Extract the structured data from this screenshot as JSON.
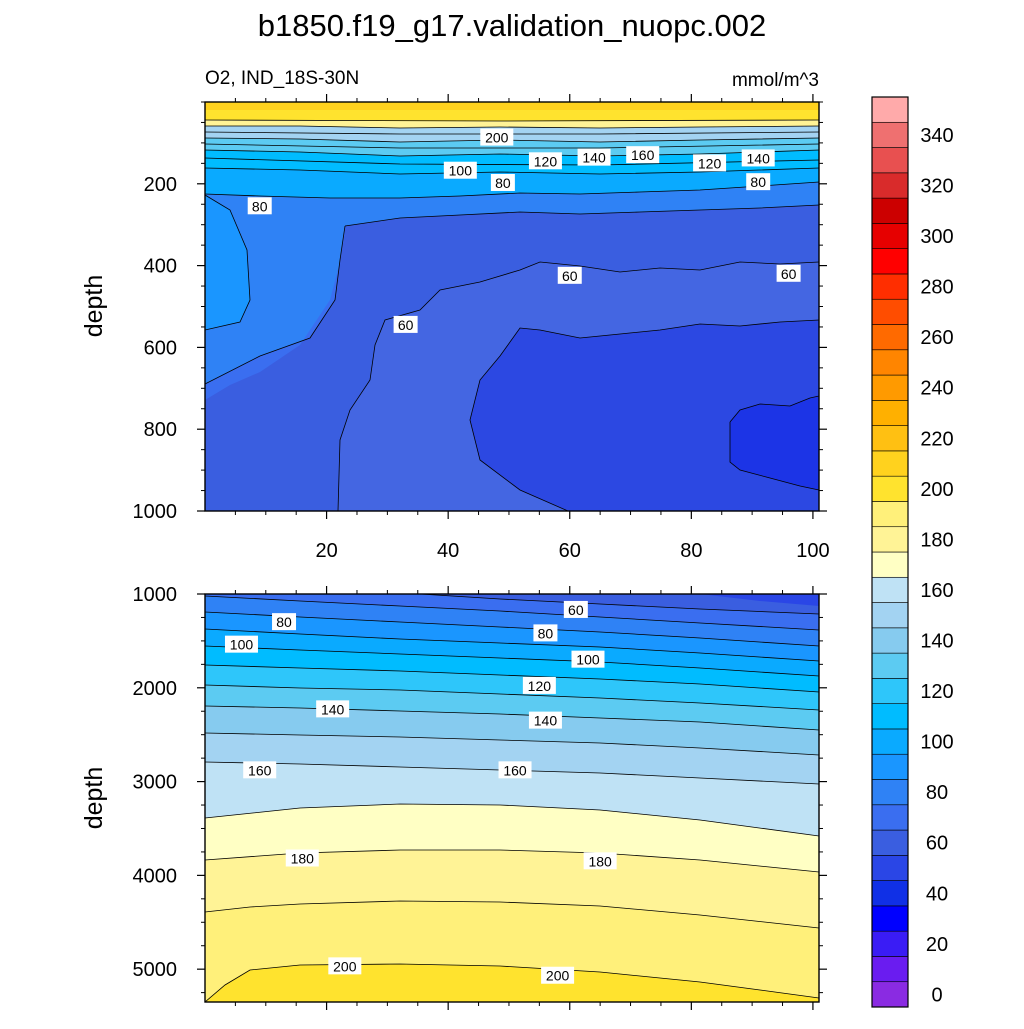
{
  "title": "b1850.f19_g17.validation_nuopc.002",
  "units": "mmol/m^3",
  "colors": {
    "levels": [
      "#8a2be2",
      "#6a1cf0",
      "#3a1cf5",
      "#0000ff",
      "#1030e6",
      "#2a46e6",
      "#3a5ee0",
      "#3a6ef0",
      "#2f82f5",
      "#1a96ff",
      "#0aaaff",
      "#00bcff",
      "#2ec6fa",
      "#5ccbf2",
      "#86cbef",
      "#a3d3f2",
      "#bfe2f5",
      "#ffffc4",
      "#fff396",
      "#fff07a",
      "#ffe32e",
      "#ffd21e",
      "#ffc012",
      "#ffb000",
      "#ff9a00",
      "#ff8500",
      "#ff6a00",
      "#ff4d00",
      "#ff2e00",
      "#ff0000",
      "#e60000",
      "#cc0000",
      "#d92b2b",
      "#e85050",
      "#ef7070",
      "#ffaaaa"
    ]
  },
  "chart_data": [
    {
      "type": "contour",
      "name": "upper-panel",
      "subtitle": "O2, IND_18S-30N",
      "ylabel": "depth",
      "xlim": [
        0,
        101
      ],
      "ylim": [
        1000,
        0
      ],
      "xticks": [
        20,
        40,
        60,
        80,
        100
      ],
      "yticks": [
        200,
        400,
        600,
        800,
        1000
      ],
      "contour_labels": [
        {
          "text": "200",
          "x": 48,
          "y": 87
        },
        {
          "text": "120",
          "x": 56,
          "y": 145
        },
        {
          "text": "140",
          "x": 64,
          "y": 136
        },
        {
          "text": "160",
          "x": 72,
          "y": 130
        },
        {
          "text": "120",
          "x": 83,
          "y": 150
        },
        {
          "text": "140",
          "x": 91,
          "y": 138
        },
        {
          "text": "100",
          "x": 42,
          "y": 168
        },
        {
          "text": "80",
          "x": 49,
          "y": 198
        },
        {
          "text": "80",
          "x": 91,
          "y": 196
        },
        {
          "text": "80",
          "x": 9,
          "y": 255
        },
        {
          "text": "60",
          "x": 60,
          "y": 425
        },
        {
          "text": "60",
          "x": 96,
          "y": 420
        },
        {
          "text": "60",
          "x": 33,
          "y": 545
        }
      ]
    },
    {
      "type": "contour",
      "name": "lower-panel",
      "ylabel": "depth",
      "xlim": [
        0,
        101
      ],
      "ylim": [
        5350,
        1000
      ],
      "yticks": [
        1000,
        2000,
        3000,
        4000,
        5000
      ],
      "contour_labels": [
        {
          "text": "60",
          "x": 61,
          "y": 1170
        },
        {
          "text": "80",
          "x": 13,
          "y": 1300
        },
        {
          "text": "80",
          "x": 56,
          "y": 1420
        },
        {
          "text": "100",
          "x": 6,
          "y": 1540
        },
        {
          "text": "100",
          "x": 63,
          "y": 1700
        },
        {
          "text": "120",
          "x": 55,
          "y": 1980
        },
        {
          "text": "140",
          "x": 21,
          "y": 2230
        },
        {
          "text": "140",
          "x": 56,
          "y": 2350
        },
        {
          "text": "160",
          "x": 9,
          "y": 2880
        },
        {
          "text": "160",
          "x": 51,
          "y": 2880
        },
        {
          "text": "180",
          "x": 16,
          "y": 3820
        },
        {
          "text": "180",
          "x": 65,
          "y": 3850
        },
        {
          "text": "200",
          "x": 23,
          "y": 4970
        },
        {
          "text": "200",
          "x": 58,
          "y": 5070
        }
      ]
    }
  ],
  "colorbar": {
    "min": 0,
    "step": 10,
    "labels": [
      "0",
      "20",
      "40",
      "60",
      "80",
      "100",
      "120",
      "140",
      "160",
      "180",
      "200",
      "220",
      "240",
      "260",
      "280",
      "300",
      "320",
      "340"
    ]
  }
}
